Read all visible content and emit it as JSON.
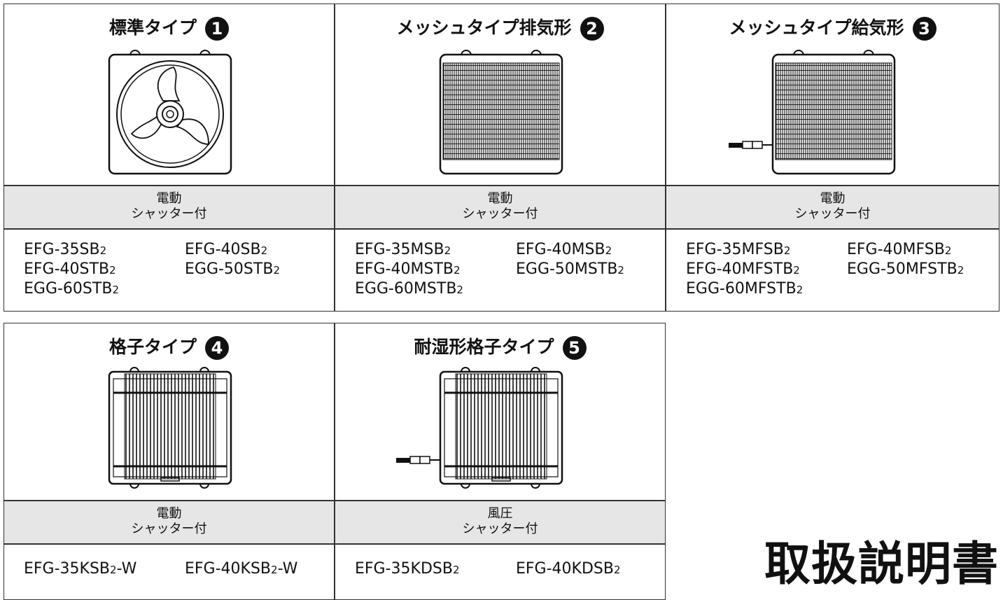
{
  "top_table": {
    "columns": [
      {
        "title": "標準タイプ",
        "badge": 1,
        "shutter": [
          "電動",
          "シャッター付"
        ],
        "models": [
          {
            "name": "EFG-35SB",
            "suffix": "2"
          },
          {
            "name": "EFG-40SB",
            "suffix": "2"
          },
          {
            "name": "EFG-40STB",
            "suffix": "2"
          },
          {
            "name": "EGG-50STB",
            "suffix": "2"
          },
          {
            "name": "EGG-60STB",
            "suffix": "2"
          }
        ]
      },
      {
        "title": "メッシュタイプ排気形",
        "badge": 2,
        "shutter": [
          "電動",
          "シャッター付"
        ],
        "models": [
          {
            "name": "EFG-35MSB",
            "suffix": "2"
          },
          {
            "name": "EFG-40MSB",
            "suffix": "2"
          },
          {
            "name": "EFG-40MSTB",
            "suffix": "2"
          },
          {
            "name": "EGG-50MSTB",
            "suffix": "2"
          },
          {
            "name": "EGG-60MSTB",
            "suffix": "2"
          }
        ]
      },
      {
        "title": "メッシュタイプ給気形",
        "badge": 3,
        "shutter": [
          "電動",
          "シャッター付"
        ],
        "models": [
          {
            "name": "EFG-35MFSB",
            "suffix": "2"
          },
          {
            "name": "EFG-40MFSB",
            "suffix": "2"
          },
          {
            "name": "EFG-40MFSTB",
            "suffix": "2"
          },
          {
            "name": "EGG-50MFSTB",
            "suffix": "2"
          },
          {
            "name": "EGG-60MFSTB",
            "suffix": "2"
          }
        ]
      }
    ]
  },
  "bottom_table": {
    "columns": [
      {
        "title": "格子タイプ",
        "badge": 4,
        "shutter": [
          "電動",
          "シャッター付"
        ],
        "models": [
          {
            "name": "EFG-35KSB",
            "suffix": "2",
            "tail": "-W"
          },
          {
            "name": "EFG-40KSB",
            "suffix": "2",
            "tail": "-W"
          }
        ]
      },
      {
        "title": "耐湿形格子タイプ",
        "badge": 5,
        "shutter": [
          "風圧",
          "シャッター付"
        ],
        "models": [
          {
            "name": "EFG-35KDSB",
            "suffix": "2"
          },
          {
            "name": "EFG-40KDSB",
            "suffix": "2"
          }
        ]
      }
    ]
  },
  "document_title": "取扱説明書"
}
